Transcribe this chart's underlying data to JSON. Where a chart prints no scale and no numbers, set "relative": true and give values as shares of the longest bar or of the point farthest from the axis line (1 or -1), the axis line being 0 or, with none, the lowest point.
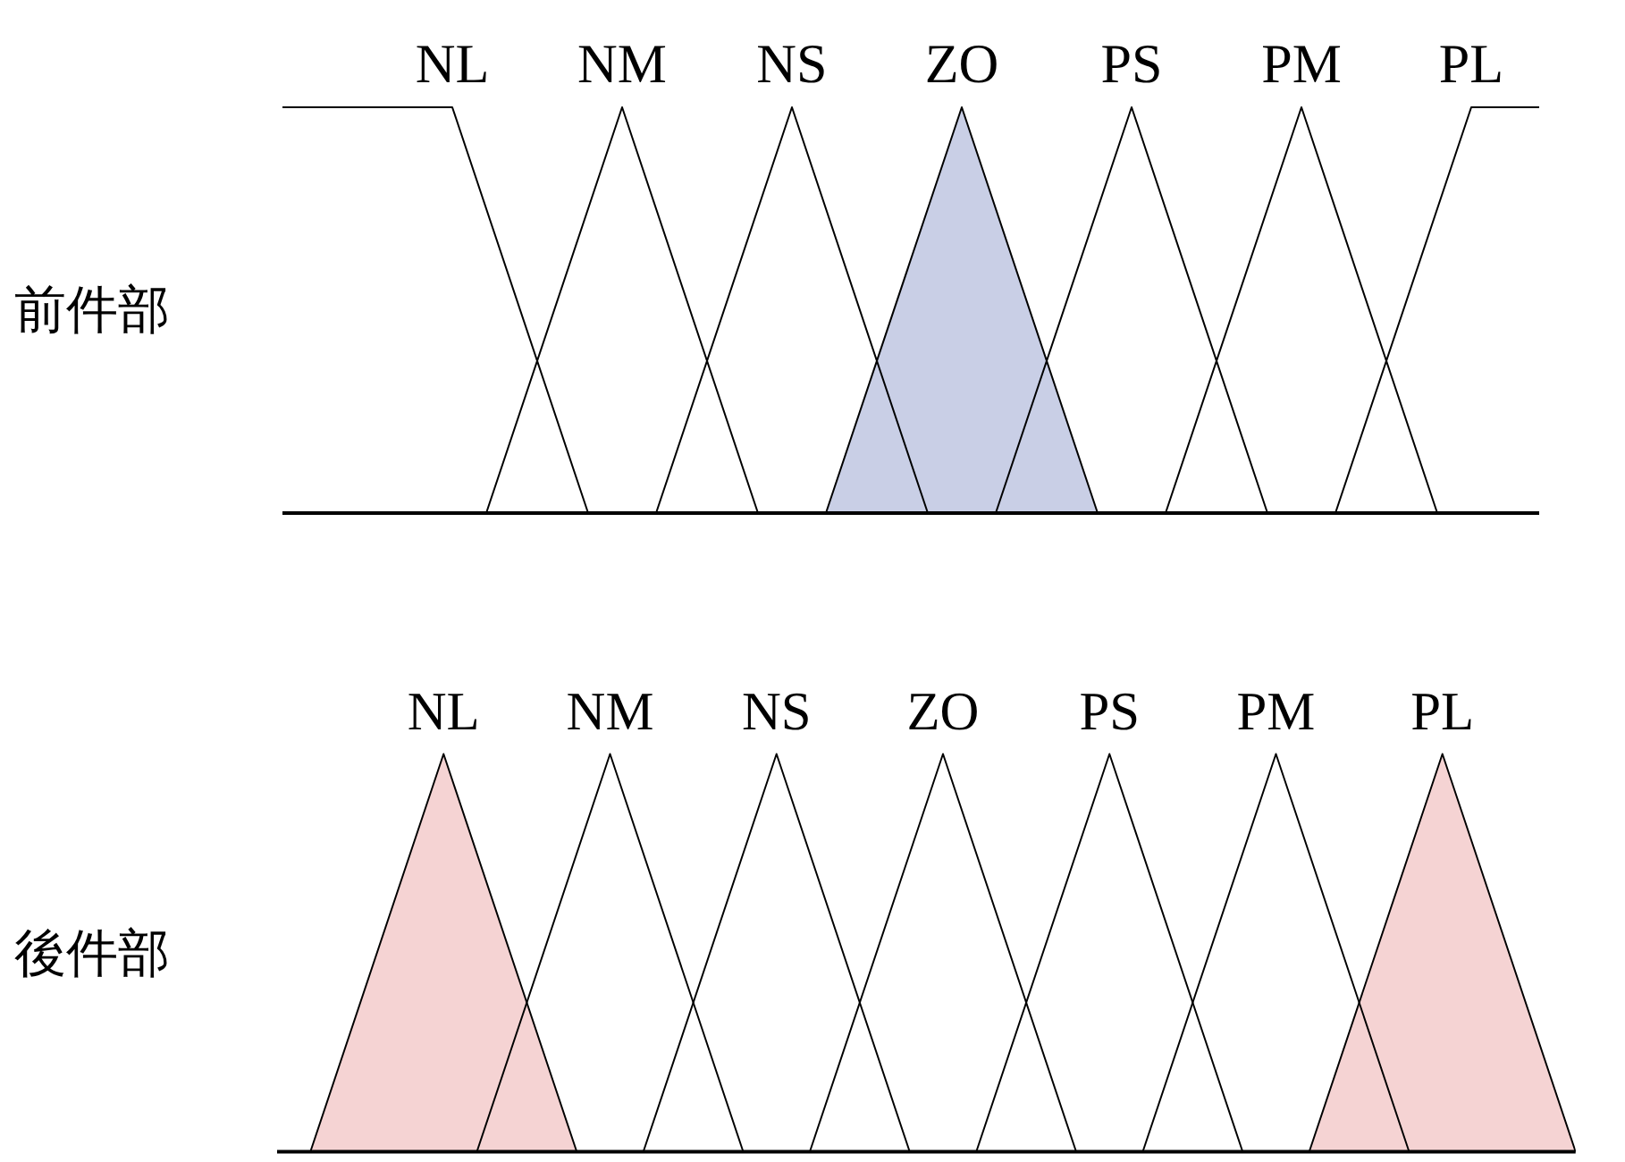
{
  "chart_data": [
    {
      "type": "line",
      "ylabel": "前件部",
      "relative": true,
      "legend": false,
      "grid": false,
      "marker": "none",
      "categories": [
        null,
        null,
        null,
        null,
        null,
        null,
        null,
        null,
        null,
        null,
        null,
        null,
        null,
        null,
        null,
        null,
        null,
        null,
        null,
        null,
        null,
        null,
        null,
        null,
        null,
        null,
        null,
        null,
        null,
        null,
        null,
        null,
        null,
        null,
        null,
        null,
        null,
        null
      ],
      "series": [
        {
          "name": "NL",
          "color": "#000000",
          "values": [
            1,
            null,
            null,
            null,
            null,
            1,
            null,
            null,
            null,
            0,
            null,
            null,
            null,
            null,
            null,
            null,
            null,
            null,
            null,
            null,
            null,
            null,
            null,
            null,
            null,
            null,
            null,
            null,
            null,
            null,
            null,
            null,
            null,
            null,
            null,
            null,
            null,
            null
          ]
        },
        {
          "name": "NM",
          "color": "#000000",
          "values": [
            null,
            null,
            null,
            null,
            null,
            null,
            0,
            null,
            null,
            null,
            1,
            null,
            null,
            null,
            0,
            null,
            null,
            null,
            null,
            null,
            null,
            null,
            null,
            null,
            null,
            null,
            null,
            null,
            null,
            null,
            null,
            null,
            null,
            null,
            null,
            null,
            null,
            null
          ]
        },
        {
          "name": "NS",
          "color": "#000000",
          "values": [
            null,
            null,
            null,
            null,
            null,
            null,
            null,
            null,
            null,
            null,
            null,
            0,
            null,
            null,
            null,
            1,
            null,
            null,
            null,
            0,
            null,
            null,
            null,
            null,
            null,
            null,
            null,
            null,
            null,
            null,
            null,
            null,
            null,
            null,
            null,
            null,
            null,
            null
          ]
        },
        {
          "name": "ZO",
          "type": "area",
          "color": "#c9cfe6",
          "values": [
            null,
            null,
            null,
            null,
            null,
            null,
            null,
            null,
            null,
            null,
            null,
            null,
            null,
            null,
            null,
            null,
            0,
            null,
            null,
            null,
            1,
            null,
            null,
            null,
            0,
            null,
            null,
            null,
            null,
            null,
            null,
            null,
            null,
            null,
            null,
            null,
            null,
            null
          ]
        },
        {
          "name": "PS",
          "color": "#000000",
          "values": [
            null,
            null,
            null,
            null,
            null,
            null,
            null,
            null,
            null,
            null,
            null,
            null,
            null,
            null,
            null,
            null,
            null,
            null,
            null,
            null,
            null,
            0,
            null,
            null,
            null,
            1,
            null,
            null,
            null,
            0,
            null,
            null,
            null,
            null,
            null,
            null,
            null,
            null
          ]
        },
        {
          "name": "PM",
          "color": "#000000",
          "values": [
            null,
            null,
            null,
            null,
            null,
            null,
            null,
            null,
            null,
            null,
            null,
            null,
            null,
            null,
            null,
            null,
            null,
            null,
            null,
            null,
            null,
            null,
            null,
            null,
            null,
            null,
            0,
            null,
            null,
            null,
            1,
            null,
            null,
            null,
            0,
            null,
            null,
            null
          ]
        },
        {
          "name": "PL",
          "color": "#000000",
          "values": [
            null,
            null,
            null,
            null,
            null,
            null,
            null,
            null,
            null,
            null,
            null,
            null,
            null,
            null,
            null,
            null,
            null,
            null,
            null,
            null,
            null,
            null,
            null,
            null,
            null,
            null,
            null,
            null,
            null,
            null,
            null,
            0,
            null,
            null,
            null,
            1,
            null,
            1
          ]
        }
      ]
    },
    {
      "type": "line",
      "ylabel": "後件部",
      "relative": true,
      "legend": false,
      "grid": false,
      "marker": "none",
      "categories": [
        null,
        null,
        null,
        null,
        null,
        null,
        null,
        null,
        null,
        null,
        null,
        null,
        null,
        null,
        null,
        null,
        null,
        null,
        null,
        null,
        null,
        null,
        null,
        null,
        null,
        null,
        null,
        null,
        null,
        null,
        null,
        null,
        null,
        null,
        null,
        null,
        null,
        null,
        null,
        null
      ],
      "series": [
        {
          "name": "NL",
          "type": "area",
          "color": "#f5d3d3",
          "values": [
            null,
            0,
            null,
            null,
            null,
            1,
            null,
            null,
            null,
            0,
            null,
            null,
            null,
            null,
            null,
            null,
            null,
            null,
            null,
            null,
            null,
            null,
            null,
            null,
            null,
            null,
            null,
            null,
            null,
            null,
            null,
            null,
            null,
            null,
            null,
            null,
            null,
            null,
            null,
            null
          ]
        },
        {
          "name": "NM",
          "color": "#000000",
          "values": [
            null,
            null,
            null,
            null,
            null,
            null,
            0,
            null,
            null,
            null,
            1,
            null,
            null,
            null,
            0,
            null,
            null,
            null,
            null,
            null,
            null,
            null,
            null,
            null,
            null,
            null,
            null,
            null,
            null,
            null,
            null,
            null,
            null,
            null,
            null,
            null,
            null,
            null,
            null,
            null
          ]
        },
        {
          "name": "NS",
          "color": "#000000",
          "values": [
            null,
            null,
            null,
            null,
            null,
            null,
            null,
            null,
            null,
            null,
            null,
            0,
            null,
            null,
            null,
            1,
            null,
            null,
            null,
            0,
            null,
            null,
            null,
            null,
            null,
            null,
            null,
            null,
            null,
            null,
            null,
            null,
            null,
            null,
            null,
            null,
            null,
            null,
            null,
            null
          ]
        },
        {
          "name": "ZO",
          "color": "#000000",
          "values": [
            null,
            null,
            null,
            null,
            null,
            null,
            null,
            null,
            null,
            null,
            null,
            null,
            null,
            null,
            null,
            null,
            0,
            null,
            null,
            null,
            1,
            null,
            null,
            null,
            0,
            null,
            null,
            null,
            null,
            null,
            null,
            null,
            null,
            null,
            null,
            null,
            null,
            null,
            null,
            null
          ]
        },
        {
          "name": "PS",
          "color": "#000000",
          "values": [
            null,
            null,
            null,
            null,
            null,
            null,
            null,
            null,
            null,
            null,
            null,
            null,
            null,
            null,
            null,
            null,
            null,
            null,
            null,
            null,
            null,
            0,
            null,
            null,
            null,
            1,
            null,
            null,
            null,
            0,
            null,
            null,
            null,
            null,
            null,
            null,
            null,
            null,
            null,
            null
          ]
        },
        {
          "name": "PM",
          "color": "#000000",
          "values": [
            null,
            null,
            null,
            null,
            null,
            null,
            null,
            null,
            null,
            null,
            null,
            null,
            null,
            null,
            null,
            null,
            null,
            null,
            null,
            null,
            null,
            null,
            null,
            null,
            null,
            null,
            0,
            null,
            null,
            null,
            1,
            null,
            null,
            null,
            0,
            null,
            null,
            null,
            null,
            null
          ]
        },
        {
          "name": "PL",
          "type": "area",
          "color": "#f5d3d3",
          "values": [
            null,
            null,
            null,
            null,
            null,
            null,
            null,
            null,
            null,
            null,
            null,
            null,
            null,
            null,
            null,
            null,
            null,
            null,
            null,
            null,
            null,
            null,
            null,
            null,
            null,
            null,
            null,
            null,
            null,
            null,
            null,
            0,
            null,
            null,
            null,
            1,
            null,
            null,
            null,
            0
          ]
        }
      ]
    }
  ]
}
